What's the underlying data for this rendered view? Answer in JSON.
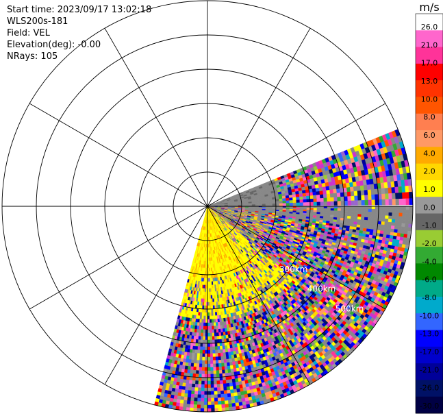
{
  "info": {
    "start_time": "Start time: 2023/09/17 13:02:18",
    "instrument": "WLS200s-181",
    "field": "Field: VEL",
    "elevation": "Elevation(deg): -0.00",
    "nrays": "NRays: 105"
  },
  "chart_data": {
    "type": "heatmap",
    "projection": "polar-ppi",
    "title": "",
    "range_ring_labels": [
      "300km",
      "400km",
      "500km"
    ],
    "ring_count": 6,
    "spoke_step_deg": 30,
    "sector_deg": [
      0,
      105
    ],
    "colorbar": {
      "unit": "m/s",
      "ticks": [
        "26.0",
        "21.0",
        "17.0",
        "13.0",
        "10.0",
        "8.0",
        "6.0",
        "4.0",
        "2.0",
        "1.0",
        "0.0",
        "-1.0",
        "-2.0",
        "-4.0",
        "-6.0",
        "-8.0",
        "-10.0",
        "-13.0",
        "-17.0",
        "-21.0",
        "-26.0",
        "-30.0"
      ],
      "colors": [
        "#ffffff",
        "#ff66cc",
        "#ff3399",
        "#ff0000",
        "#ff3300",
        "#ff5500",
        "#ff7f50",
        "#ff9966",
        "#ffaa00",
        "#ffd700",
        "#ffff00",
        "#999999",
        "#666666",
        "#99cc33",
        "#33aa33",
        "#008800",
        "#00aa88",
        "#00aacc",
        "#3366ff",
        "#0000ff",
        "#0000cc",
        "#000099",
        "#001166",
        "#000044"
      ]
    }
  }
}
